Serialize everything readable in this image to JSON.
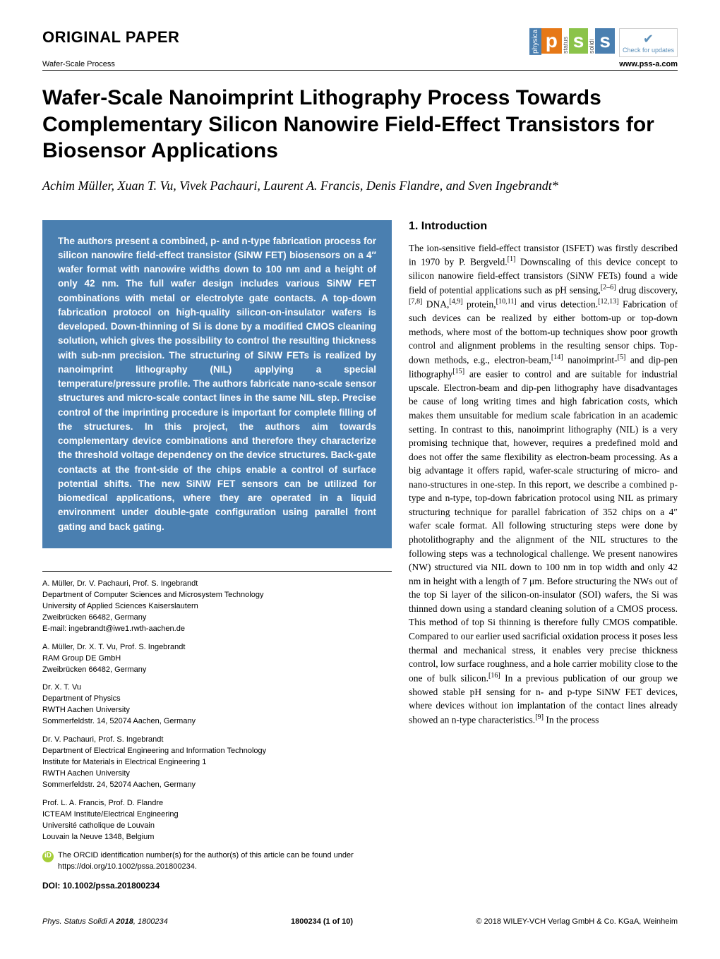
{
  "header": {
    "paper_type": "ORIGINAL PAPER",
    "topic": "Wafer-Scale Process",
    "site": "www.pss-a.com",
    "check_badge": "Check for updates",
    "logo": {
      "physica": "physica",
      "p": "p",
      "s1": "s",
      "s2": "s",
      "status": "status",
      "solidi": "solidi"
    }
  },
  "title": "Wafer-Scale Nanoimprint Lithography Process Towards Complementary Silicon Nanowire Field-Effect Transistors for Biosensor Applications",
  "authors": "Achim Müller, Xuan T. Vu, Vivek Pachauri, Laurent A. Francis, Denis Flandre, and Sven Ingebrandt*",
  "abstract": "The authors present a combined, p- and n-type fabrication process for silicon nanowire field-effect transistor (SiNW FET) biosensors on a 4″ wafer format with nanowire widths down to 100 nm and a height of only 42 nm. The full wafer design includes various SiNW FET combinations with metal or electrolyte gate contacts. A top-down fabrication protocol on high-quality silicon-on-insulator wafers is developed. Down-thinning of Si is done by a modified CMOS cleaning solution, which gives the possibility to control the resulting thickness with sub-nm precision. The structuring of SiNW FETs is realized by nanoimprint lithography (NIL) applying a special temperature/pressure profile. The authors fabricate nano-scale sensor structures and micro-scale contact lines in the same NIL step. Precise control of the imprinting procedure is important for complete filling of the structures. In this project, the authors aim towards complementary device combinations and therefore they characterize the threshold voltage dependency on the device structures. Back-gate contacts at the front-side of the chips enable a control of surface potential shifts. The new SiNW FET sensors can be utilized for biomedical applications, where they are operated in a liquid environment under double-gate configuration using parallel front gating and back gating.",
  "affiliations": [
    {
      "names": "A. Müller, Dr. V. Pachauri, Prof. S. Ingebrandt",
      "lines": [
        "Department of Computer Sciences and Microsystem Technology",
        "University of Applied Sciences Kaiserslautern",
        "Zweibrücken 66482, Germany",
        "E-mail: ingebrandt@iwe1.rwth-aachen.de"
      ]
    },
    {
      "names": "A. Müller, Dr. X. T. Vu, Prof. S. Ingebrandt",
      "lines": [
        "RAM Group DE GmbH",
        "Zweibrücken 66482, Germany"
      ]
    },
    {
      "names": "Dr. X. T. Vu",
      "lines": [
        "Department of Physics",
        "RWTH Aachen University",
        "Sommerfeldstr. 14, 52074 Aachen, Germany"
      ]
    },
    {
      "names": "Dr. V. Pachauri, Prof. S. Ingebrandt",
      "lines": [
        "Department of Electrical Engineering and Information Technology",
        "Institute for Materials in Electrical Engineering 1",
        "RWTH Aachen University",
        "Sommerfeldstr. 24, 52074 Aachen, Germany"
      ]
    },
    {
      "names": "Prof. L. A. Francis, Prof. D. Flandre",
      "lines": [
        "ICTEAM Institute/Electrical Engineering",
        "Université catholique de Louvain",
        "Louvain la Neuve 1348, Belgium"
      ]
    }
  ],
  "orcid_note": "The ORCID identification number(s) for the author(s) of this article can be found under https://doi.org/10.1002/pssa.201800234.",
  "doi": "DOI: 10.1002/pssa.201800234",
  "introduction": {
    "heading": "1. Introduction",
    "body_html": "The ion-sensitive field-effect transistor (ISFET) was firstly described in 1970 by P. Bergveld.<sup>[1]</sup> Downscaling of this device concept to silicon nanowire field-effect transistors (SiNW FETs) found a wide field of potential applications such as pH sensing,<sup>[2–6]</sup> drug discovery,<sup>[7,8]</sup> DNA,<sup>[4,9]</sup> protein,<sup>[10,11]</sup> and virus detection.<sup>[12,13]</sup> Fabrication of such devices can be realized by either bottom-up or top-down methods, where most of the bottom-up techniques show poor growth control and alignment problems in the resulting sensor chips. Top-down methods, e.g., electron-beam,<sup>[14]</sup> nanoimprint-<sup>[5]</sup> and dip-pen lithography<sup>[15]</sup> are easier to control and are suitable for industrial upscale. Electron-beam and dip-pen lithography have disadvantages be cause of long writing times and high fabrication costs, which makes them unsuitable for medium scale fabrication in an academic setting. In contrast to this, nanoimprint lithography (NIL) is a very promising technique that, however, requires a predefined mold and does not offer the same flexibility as electron-beam processing. As a big advantage it offers rapid, wafer-scale structuring of micro- and nano-structures in one-step. In this report, we describe a combined p-type and n-type, top-down fabrication protocol using NIL as primary structuring technique for parallel fabrication of 352 chips on a 4″ wafer scale format. All following structuring steps were done by photolithography and the alignment of the NIL structures to the following steps was a technological challenge. We present nanowires (NW) structured via NIL down to 100 nm in top width and only 42 nm in height with a length of 7 μm. Before structuring the NWs out of the top Si layer of the silicon-on-insulator (SOI) wafers, the Si was thinned down using a standard cleaning solution of a CMOS process. This method of top Si thinning is therefore fully CMOS compatible. Compared to our earlier used sacrificial oxidation process it poses less thermal and mechanical stress, it enables very precise thickness control, low surface roughness, and a hole carrier mobility close to the one of bulk silicon.<sup>[16]</sup> In a previous publication of our group we showed stable pH sensing for n- and p-type SiNW FET devices, where devices without ion implantation of the contact lines already showed an n-type characteristics.<sup>[9]</sup> In the process"
  },
  "footer": {
    "left_html": "<i>Phys. Status Solidi A</i> <b>2018</b>, 1800234",
    "center": "1800234 (1 of 10)",
    "right": "© 2018 WILEY-VCH Verlag GmbH & Co. KGaA, Weinheim"
  },
  "colors": {
    "abstract_bg": "#4a7fb0",
    "abstract_text": "#ffffff",
    "logo_p": "#e67817",
    "logo_s1": "#8bc34a",
    "logo_s2": "#4a7fb0",
    "orcid": "#a6ce39"
  }
}
